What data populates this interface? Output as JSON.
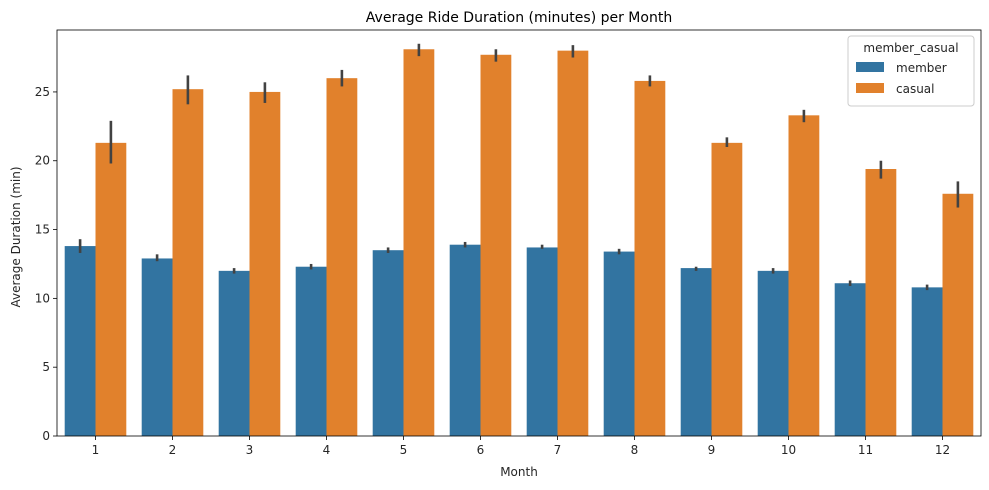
{
  "chart_data": {
    "type": "bar",
    "title": "Average Ride Duration (minutes) per Month",
    "xlabel": "Month",
    "ylabel": "Average Duration (min)",
    "categories": [
      "1",
      "2",
      "3",
      "4",
      "5",
      "6",
      "7",
      "8",
      "9",
      "10",
      "11",
      "12"
    ],
    "ylim": [
      0,
      29.5
    ],
    "yticks": [
      0,
      5,
      10,
      15,
      20,
      25
    ],
    "grid": false,
    "legend": {
      "title": "member_casual",
      "placement": "top-right"
    },
    "series": [
      {
        "name": "member",
        "color": "#3274a1",
        "values": [
          13.8,
          12.9,
          12.0,
          12.3,
          13.5,
          13.9,
          13.7,
          13.4,
          12.2,
          12.0,
          11.1,
          10.8
        ],
        "err_low": [
          13.3,
          12.7,
          11.8,
          12.1,
          13.3,
          13.7,
          13.6,
          13.2,
          12.0,
          11.8,
          10.9,
          10.6
        ],
        "err_high": [
          14.3,
          13.2,
          12.2,
          12.5,
          13.7,
          14.1,
          13.9,
          13.6,
          12.3,
          12.2,
          11.3,
          11.0
        ]
      },
      {
        "name": "casual",
        "color": "#e1812c",
        "values": [
          21.3,
          25.2,
          25.0,
          26.0,
          28.1,
          27.7,
          28.0,
          25.8,
          21.3,
          23.3,
          19.4,
          17.6
        ],
        "err_low": [
          19.8,
          24.1,
          24.2,
          25.4,
          27.6,
          27.2,
          27.5,
          25.4,
          21.0,
          22.8,
          18.7,
          16.6
        ],
        "err_high": [
          22.9,
          26.2,
          25.7,
          26.6,
          28.5,
          28.1,
          28.4,
          26.2,
          21.7,
          23.7,
          20.0,
          18.5
        ]
      }
    ]
  }
}
